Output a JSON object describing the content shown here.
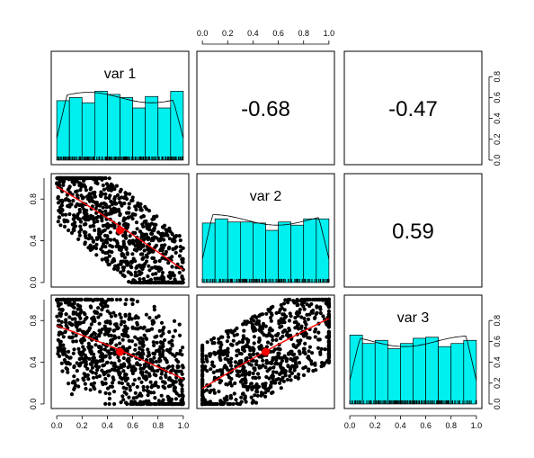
{
  "chart_data": {
    "type": "scatter",
    "title": "",
    "matrix": "pairs",
    "variables": [
      "var 1",
      "var 2",
      "var 3"
    ],
    "axis_range": [
      0,
      1
    ],
    "ticks": [
      "0.0",
      "0.2",
      "0.4",
      "0.6",
      "0.8",
      "1.0"
    ],
    "diag_ticks": [
      "0.0",
      "0.2",
      "0.4",
      "0.6",
      "0.8"
    ],
    "correlations": [
      {
        "row": 1,
        "col": 2,
        "label": "-0.68",
        "value": -0.68
      },
      {
        "row": 1,
        "col": 3,
        "label": "-0.47",
        "value": -0.47
      },
      {
        "row": 2,
        "col": 3,
        "label": "0.59",
        "value": 0.59
      }
    ],
    "histograms": {
      "bin_edges": [
        0.0,
        0.1,
        0.2,
        0.3,
        0.4,
        0.5,
        0.6,
        0.7,
        0.8,
        0.9,
        1.0
      ],
      "var 1": [
        0.57,
        0.6,
        0.55,
        0.66,
        0.63,
        0.6,
        0.5,
        0.61,
        0.5,
        0.66
      ],
      "var 2": [
        0.57,
        0.61,
        0.58,
        0.58,
        0.57,
        0.5,
        0.58,
        0.55,
        0.61,
        0.61
      ],
      "var 3": [
        0.66,
        0.58,
        0.61,
        0.53,
        0.58,
        0.63,
        0.64,
        0.55,
        0.58,
        0.61
      ]
    },
    "scatter_fits": [
      {
        "x": "var 1",
        "y": "var 2",
        "mean": [
          0.5,
          0.5
        ],
        "fit_y_at_0": 0.92,
        "fit_y_at_1": 0.12
      },
      {
        "x": "var 1",
        "y": "var 3",
        "mean": [
          0.5,
          0.5
        ],
        "fit_y_at_0": 0.75,
        "fit_y_at_1": 0.24
      },
      {
        "x": "var 2",
        "y": "var 3",
        "mean": [
          0.5,
          0.5
        ],
        "fit_y_at_0": 0.15,
        "fit_y_at_1": 0.82
      }
    ],
    "point_count": 1000,
    "colors": {
      "hist": "#00f0f0",
      "fit": "#ff0000",
      "points": "#000000"
    },
    "grid": false,
    "legend": "none"
  }
}
